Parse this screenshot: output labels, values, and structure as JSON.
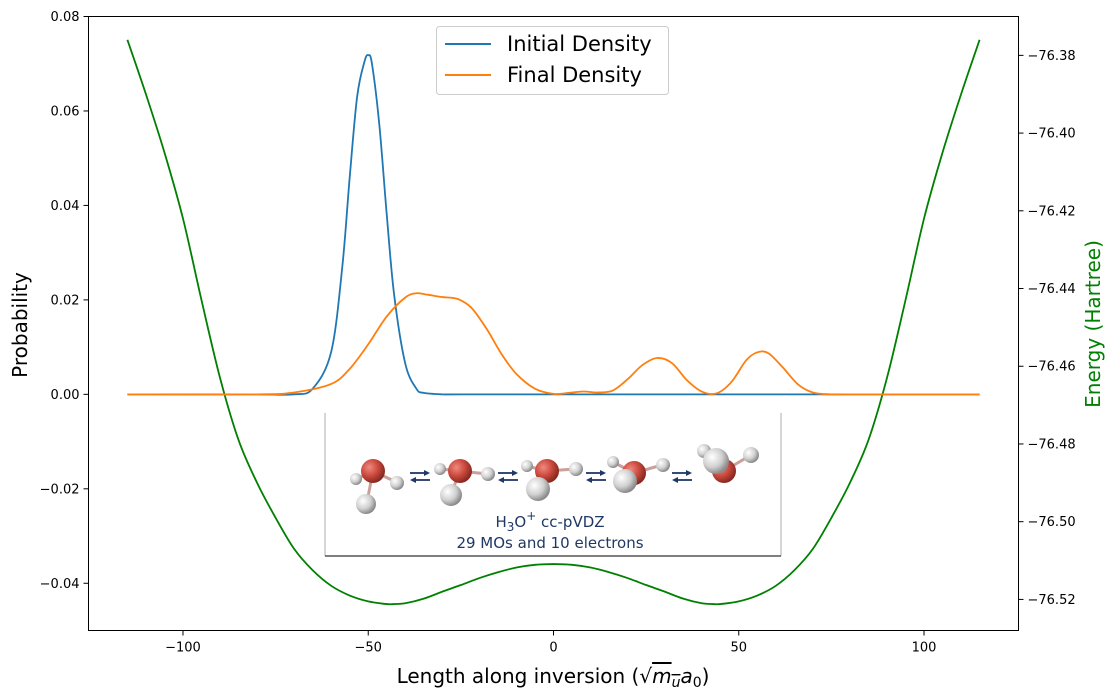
{
  "chart_data": {
    "type": "line",
    "xlabel_prefix": "Length along inversion (",
    "xlabel_sqrt": "√",
    "xlabel_m": "m",
    "xlabel_u": "u",
    "xlabel_a": "a",
    "xlabel_0": "0",
    "xlabel_suffix": ")",
    "ylabel": "Probability",
    "y2label": "Energy (Hartree)",
    "xlim": [
      -125.5,
      125.5
    ],
    "ylim": [
      -0.05,
      0.08
    ],
    "y2lim": [
      -76.528,
      -76.37
    ],
    "xticks": [
      -100,
      -50,
      0,
      50,
      100
    ],
    "xtick_labels": [
      "−100",
      "−50",
      "0",
      "50",
      "100"
    ],
    "yticks": [
      0.08,
      0.06,
      0.04,
      0.02,
      0.0,
      -0.02,
      -0.04
    ],
    "ytick_labels": [
      "0.08",
      "0.06",
      "0.04",
      "0.02",
      "0.00",
      "−0.02",
      "−0.04"
    ],
    "y2ticks": [
      -76.38,
      -76.4,
      -76.42,
      -76.44,
      -76.46,
      -76.48,
      -76.5,
      -76.52
    ],
    "y2tick_labels": [
      "−76.38",
      "−76.40",
      "−76.42",
      "−76.44",
      "−76.46",
      "−76.48",
      "−76.50",
      "−76.52"
    ],
    "legend_position": "top-center",
    "grid": false,
    "series": [
      {
        "name": "Initial Density",
        "color": "#1f77b4",
        "axis": "left",
        "x": [
          -115,
          -100,
          -80,
          -70,
          -65,
          -60,
          -57,
          -55,
          -53,
          -51,
          -50,
          -49,
          -47,
          -45,
          -43,
          -40,
          -37,
          -35,
          -30,
          -25,
          0,
          50,
          115
        ],
        "y": [
          0.0,
          0.0,
          0.0,
          0.0,
          0.0012,
          0.009,
          0.027,
          0.046,
          0.063,
          0.0705,
          0.0718,
          0.07,
          0.057,
          0.038,
          0.021,
          0.0065,
          0.0012,
          0.0003,
          0.0,
          0.0,
          0.0,
          0.0,
          0.0
        ]
      },
      {
        "name": "Final Density",
        "color": "#ff7f0e",
        "axis": "left",
        "x": [
          -115,
          -80,
          -70,
          -60,
          -55,
          -50,
          -45,
          -40,
          -37,
          -34,
          -30,
          -27,
          -25,
          -22,
          -18,
          -14,
          -10,
          -5,
          0,
          4,
          8,
          12,
          16,
          20,
          24,
          28,
          32,
          36,
          40,
          44,
          48,
          52,
          55,
          58,
          62,
          66,
          70,
          75,
          80,
          115
        ],
        "y": [
          0.0,
          0.0,
          0.0004,
          0.0022,
          0.0054,
          0.0106,
          0.0165,
          0.0205,
          0.0214,
          0.0211,
          0.0206,
          0.0204,
          0.0199,
          0.0182,
          0.0138,
          0.0085,
          0.0043,
          0.0012,
          0.0001,
          0.0003,
          0.0006,
          0.0004,
          0.0008,
          0.0032,
          0.0062,
          0.0077,
          0.0066,
          0.003,
          0.0006,
          0.0002,
          0.0026,
          0.0072,
          0.0089,
          0.0087,
          0.0056,
          0.0021,
          0.0004,
          0.0,
          0.0,
          0.0
        ]
      },
      {
        "name": "",
        "color": "#008000",
        "axis": "right",
        "x": [
          -115,
          -110,
          -105,
          -100,
          -95,
          -90,
          -85,
          -80,
          -75,
          -70,
          -65,
          -60,
          -55,
          -50,
          -45,
          -43,
          -40,
          -35,
          -30,
          -25,
          -20,
          -15,
          -10,
          -5,
          0,
          5,
          10,
          15,
          20,
          25,
          30,
          35,
          40,
          43,
          45,
          50,
          55,
          60,
          65,
          70,
          75,
          80,
          85,
          90,
          95,
          100,
          105,
          110,
          115
        ],
        "y": [
          -76.376,
          -76.39,
          -76.405,
          -76.422,
          -76.443,
          -76.463,
          -76.479,
          -76.49,
          -76.499,
          -76.507,
          -76.5125,
          -76.5165,
          -76.519,
          -76.5205,
          -76.5212,
          -76.5212,
          -76.521,
          -76.5198,
          -76.518,
          -76.5163,
          -76.5145,
          -76.513,
          -76.5118,
          -76.5111,
          -76.5109,
          -76.5111,
          -76.5118,
          -76.513,
          -76.5145,
          -76.5163,
          -76.518,
          -76.5198,
          -76.521,
          -76.5212,
          -76.5212,
          -76.5205,
          -76.519,
          -76.5165,
          -76.5125,
          -76.507,
          -76.499,
          -76.49,
          -76.479,
          -76.463,
          -76.443,
          -76.422,
          -76.405,
          -76.39,
          -76.376
        ]
      }
    ]
  },
  "inset": {
    "formula_prefix": "H",
    "formula_sub": "3",
    "formula_o": "O",
    "formula_sup": "+",
    "formula_basis": " cc-pVDZ",
    "caption": "29 MOs and 10 electrons",
    "atom_colors": {
      "oxygen": "#cc4a3e",
      "hydrogen": "#d8d8d8"
    },
    "arrow_color": "#1f3864"
  }
}
